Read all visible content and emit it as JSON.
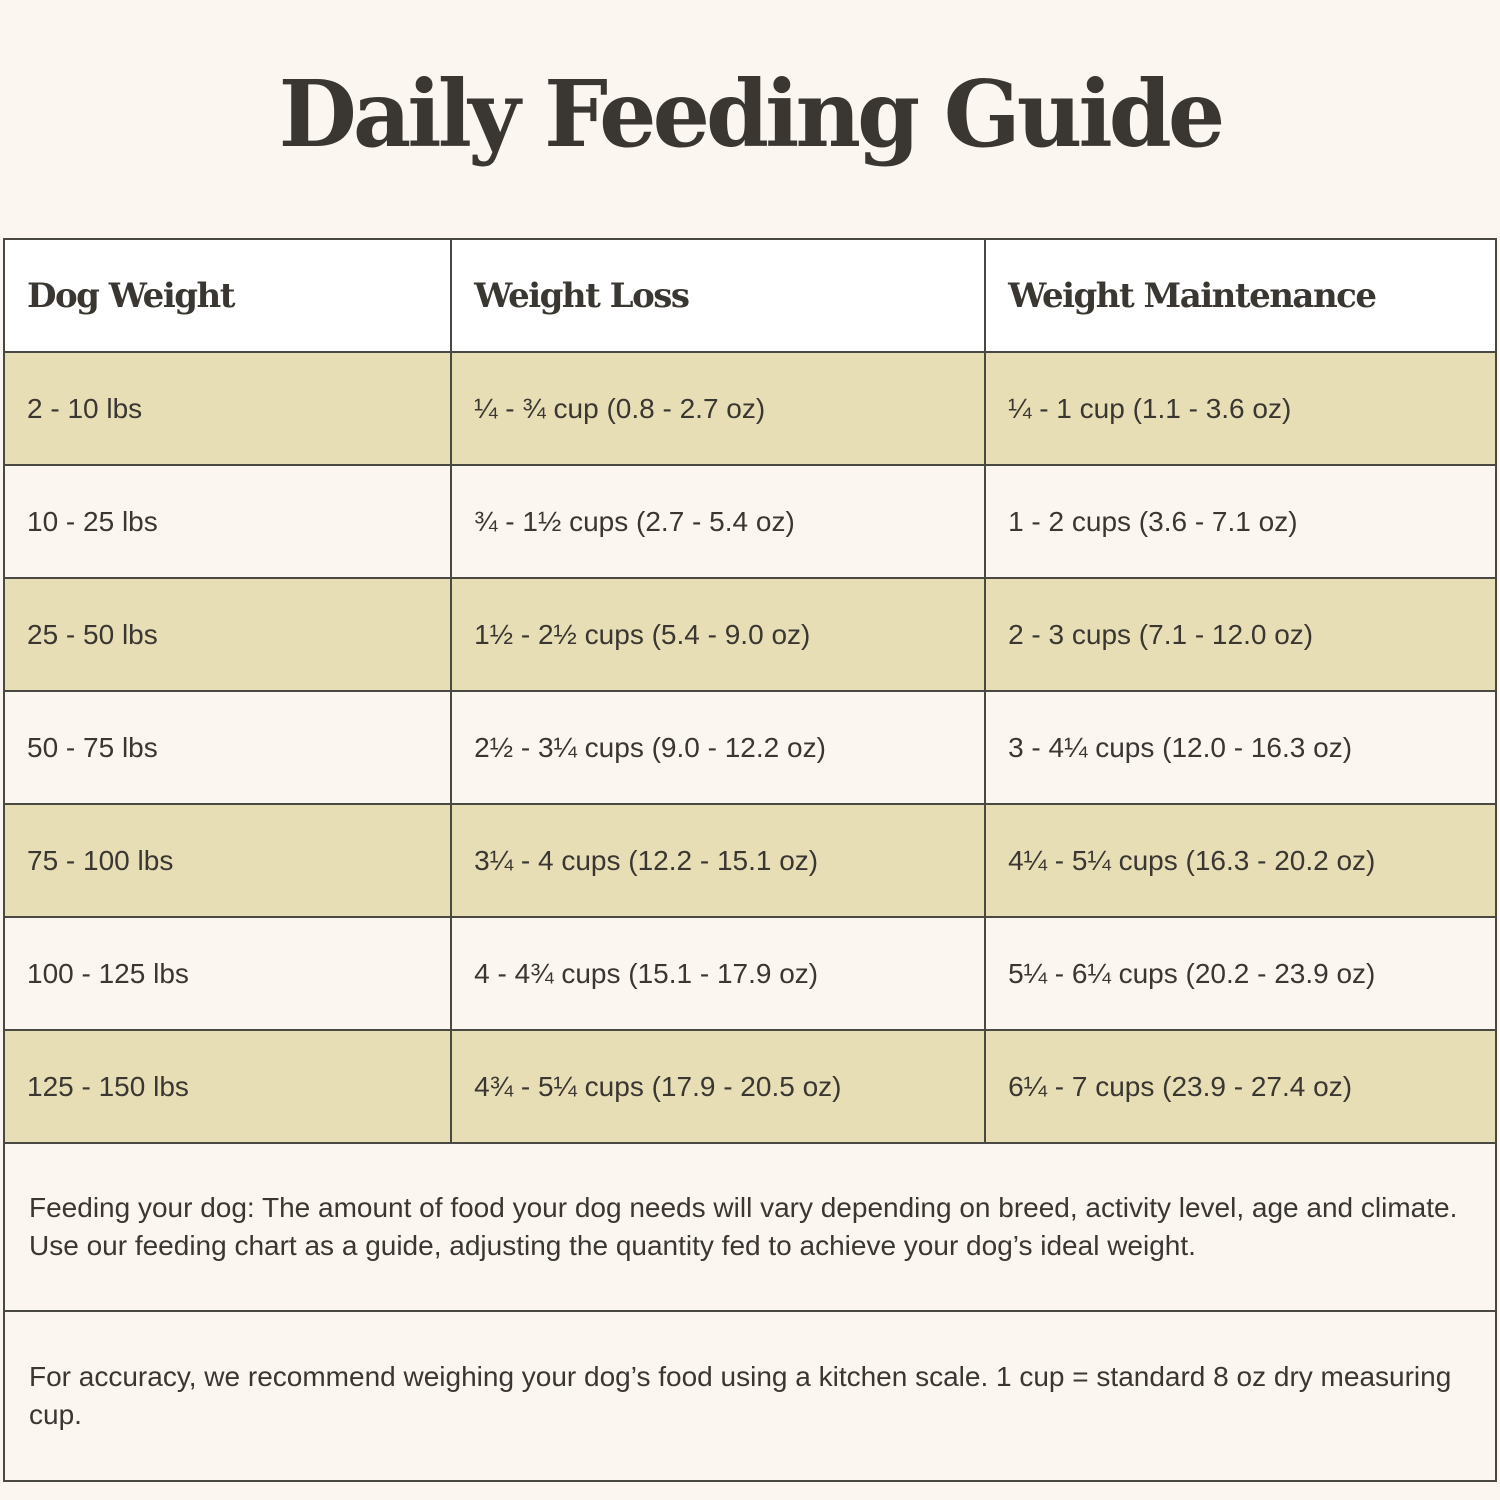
{
  "title": "Daily Feeding Guide",
  "table": {
    "headers": [
      "Dog Weight",
      "Weight Loss",
      "Weight Maintenance"
    ],
    "rows": [
      [
        "2 - 10 lbs",
        "¼ - ¾ cup (0.8 - 2.7 oz)",
        "¼ - 1 cup (1.1 - 3.6 oz)"
      ],
      [
        "10 - 25 lbs",
        "¾ - 1½ cups (2.7 - 5.4 oz)",
        "1 - 2 cups (3.6 - 7.1 oz)"
      ],
      [
        "25 - 50 lbs",
        "1½ - 2½ cups (5.4 - 9.0 oz)",
        "2 - 3 cups (7.1 - 12.0 oz)"
      ],
      [
        "50 - 75 lbs",
        "2½ - 3¼ cups (9.0 - 12.2 oz)",
        "3 - 4¼ cups (12.0 - 16.3 oz)"
      ],
      [
        "75 - 100 lbs",
        "3¼ - 4 cups (12.2 - 15.1 oz)",
        "4¼ - 5¼ cups (16.3 - 20.2 oz)"
      ],
      [
        "100 - 125 lbs",
        "4 - 4¾ cups (15.1 - 17.9 oz)",
        "5¼ - 6¼ cups (20.2 - 23.9 oz)"
      ],
      [
        "125 - 150 lbs",
        "4¾ - 5¼ cups (17.9 - 20.5 oz)",
        "6¼ - 7 cups (23.9 - 27.4 oz)"
      ]
    ]
  },
  "notes": {
    "feeding": "Feeding your dog: The amount of food your dog needs will vary depending on breed, activity level, age and climate. Use our feeding chart as a guide, adjusting the quantity fed to achieve your dog’s ideal weight.",
    "accuracy": "For accuracy, we recommend weighing your dog’s food using a kitchen scale. 1 cup = standard 8 oz dry measuring cup."
  },
  "colors": {
    "background": "#fcf6f1",
    "shaded_row": "#e8deb6",
    "header_bg": "#ffffff",
    "text": "#3a3732",
    "border": "#4a4843"
  }
}
